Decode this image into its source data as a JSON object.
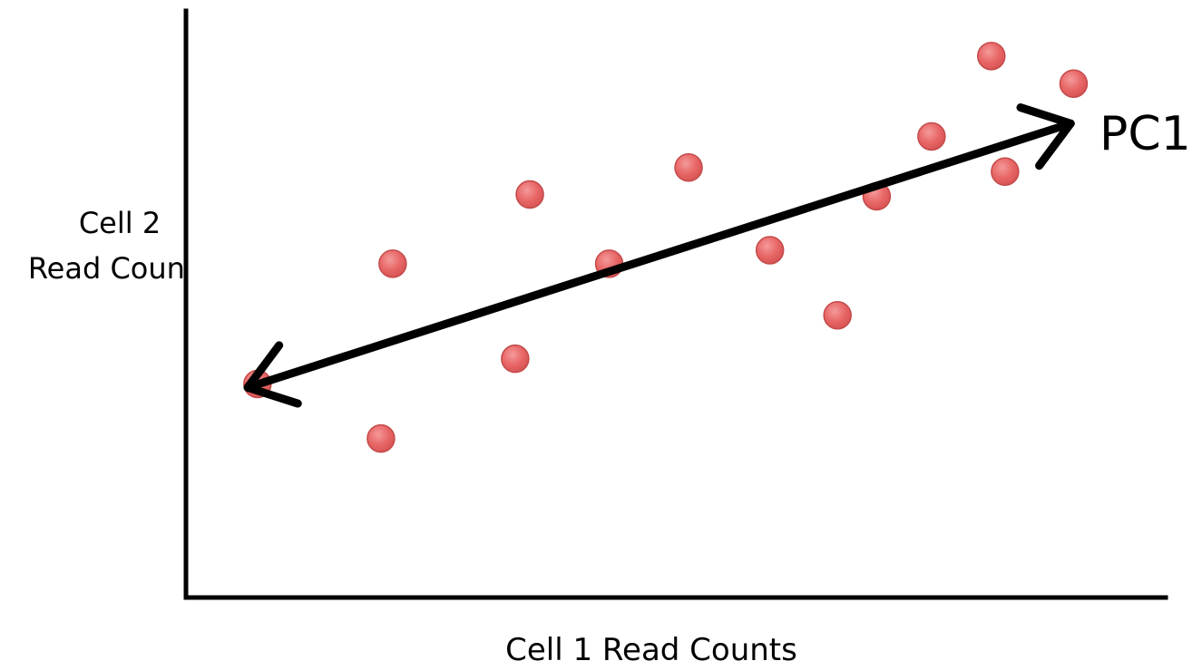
{
  "chart_data": {
    "type": "scatter",
    "xlabel": "Cell 1 Read Counts",
    "ylabel_lines": [
      "Cell 2",
      "Read Counts"
    ],
    "xlim": [
      0,
      100
    ],
    "ylim": [
      0,
      100
    ],
    "grid": false,
    "ticks": false,
    "colors": {
      "points": "#e86666",
      "point_stroke": "#c44a4a",
      "axis": "#000000",
      "arrow": "#000000"
    },
    "points": [
      {
        "x": 7.3,
        "y": 36.4
      },
      {
        "x": 19.9,
        "y": 27.1
      },
      {
        "x": 21.1,
        "y": 56.9
      },
      {
        "x": 33.6,
        "y": 40.7
      },
      {
        "x": 35.1,
        "y": 68.7
      },
      {
        "x": 43.2,
        "y": 56.9
      },
      {
        "x": 51.3,
        "y": 73.3
      },
      {
        "x": 59.6,
        "y": 59.2
      },
      {
        "x": 66.5,
        "y": 48.1
      },
      {
        "x": 70.5,
        "y": 68.4
      },
      {
        "x": 76.1,
        "y": 78.6
      },
      {
        "x": 82.2,
        "y": 92.3
      },
      {
        "x": 83.6,
        "y": 72.6
      },
      {
        "x": 90.6,
        "y": 87.6
      }
    ],
    "annotations": [
      {
        "type": "double-arrow",
        "label": "PC1",
        "from": {
          "x": 6.3,
          "y": 35.8
        },
        "to": {
          "x": 90.3,
          "y": 80.8
        }
      }
    ]
  }
}
